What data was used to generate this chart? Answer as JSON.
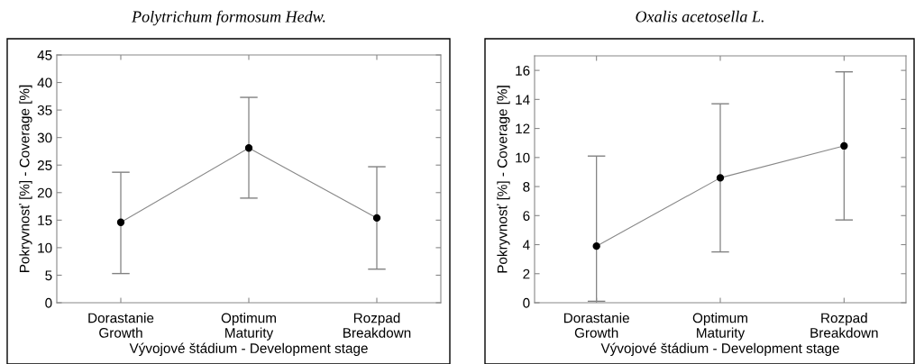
{
  "chart_data": [
    {
      "type": "line",
      "title": "Polytrichum formosum Hedw.",
      "xlabel": "Vývojové štádium - Development stage",
      "ylabel": "Pokryvnosť [%] - Coverage [%]",
      "categories": [
        "Dorastanie\nGrowth",
        "Optimum\nMaturity",
        "Rozpad\nBreakdown"
      ],
      "series": [
        {
          "color": "#000000",
          "values": [
            14.6,
            28.1,
            15.4
          ],
          "errors": [
            [
              5.3,
              23.7
            ],
            [
              19.0,
              37.3
            ],
            [
              6.1,
              24.7
            ]
          ]
        }
      ],
      "ylim": [
        0,
        45
      ],
      "yticks": [
        0,
        5,
        10,
        15,
        20,
        25,
        30,
        35,
        40,
        45
      ],
      "marker": "circle",
      "grid": false,
      "legend": false
    },
    {
      "type": "line",
      "title": "Oxalis acetosella L.",
      "xlabel": "Vývojové štádium - Development stage",
      "ylabel": "Pokryvnosť [%] - Coverage [%]",
      "categories": [
        "Dorastanie\nGrowth",
        "Optimum\nMaturity",
        "Rozpad\nBreakdown"
      ],
      "series": [
        {
          "color": "#000000",
          "values": [
            3.9,
            8.6,
            10.8
          ],
          "errors": [
            [
              0.1,
              10.1
            ],
            [
              3.5,
              13.7
            ],
            [
              5.7,
              15.9
            ]
          ]
        }
      ],
      "ylim": [
        0,
        17
      ],
      "yticks": [
        0,
        2,
        4,
        6,
        8,
        10,
        12,
        14,
        16
      ],
      "marker": "circle",
      "grid": false,
      "legend": false
    }
  ]
}
